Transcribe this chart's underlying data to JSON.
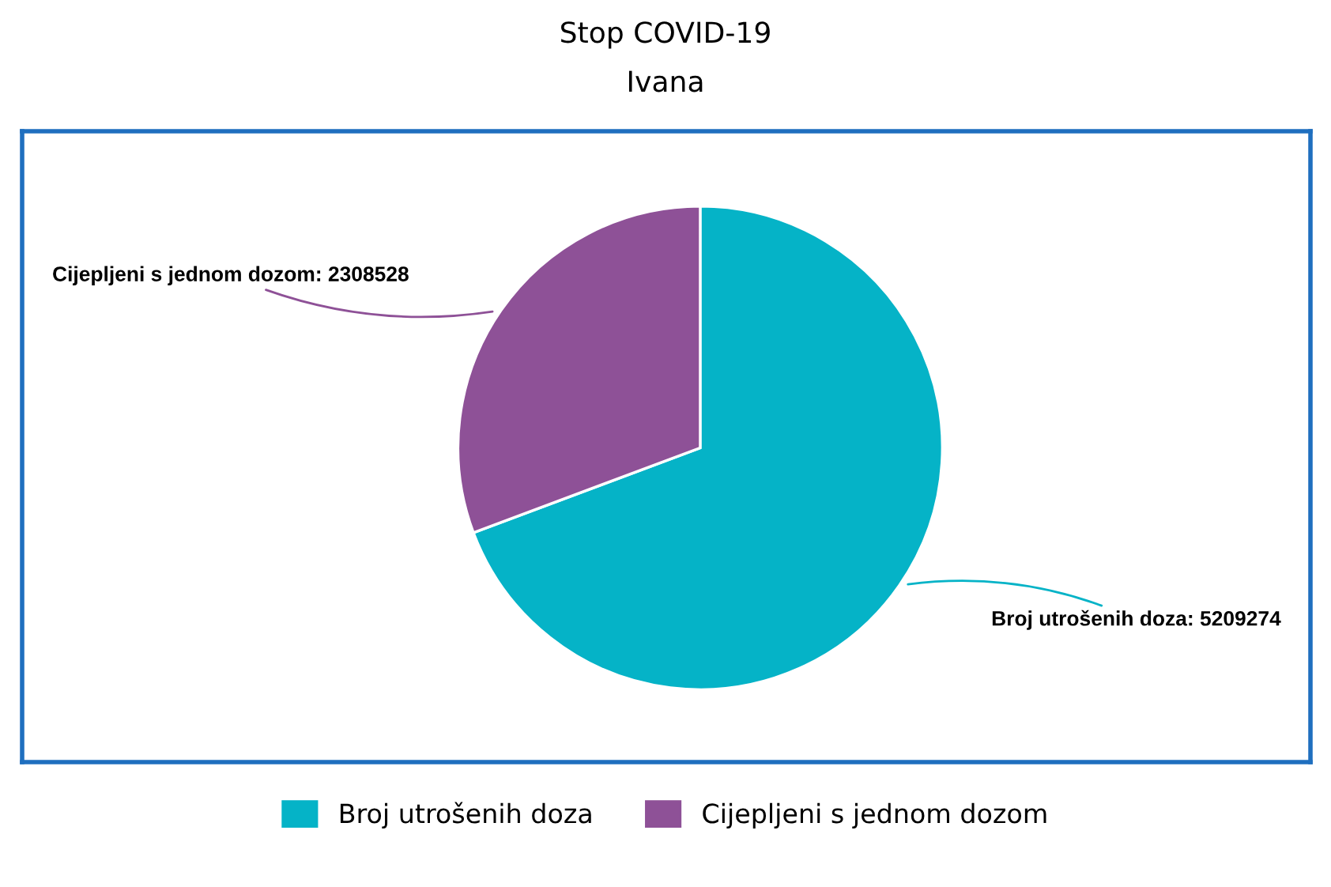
{
  "chart_data": {
    "type": "pie",
    "title": "Stop COVID-19",
    "subtitle": "Ivana",
    "categories": [
      "Broj utrošenih doza",
      "Cijepljeni s jednom dozom"
    ],
    "values": [
      5209274,
      2308528
    ],
    "colors": [
      "#05b3c7",
      "#8e5197"
    ],
    "value_labels": [
      "Broj utrošenih doza: 5209274",
      "Cijepljeni s jednom dozom: 2308528"
    ],
    "legend": "bottom"
  }
}
